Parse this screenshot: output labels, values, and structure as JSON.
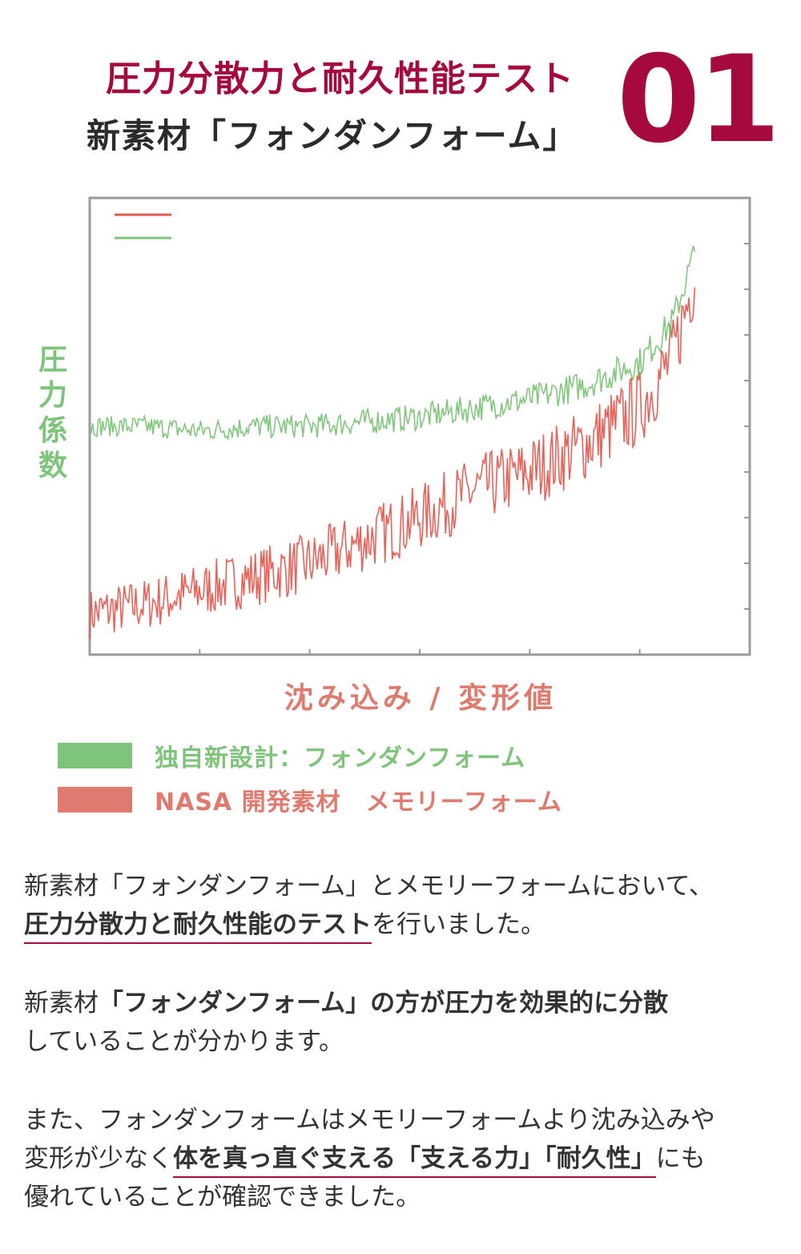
{
  "header": {
    "title_line1": "圧力分散力と耐久性能テスト",
    "title_line2": "新素材「フォンダンフォーム」",
    "number": "01"
  },
  "colors": {
    "accent": "#a6093d",
    "green": "#7ec47a",
    "red": "#e07a6e"
  },
  "chart_data": {
    "type": "line",
    "title": "",
    "xlabel": "沈み込み / 変形値",
    "ylabel": "圧力係数",
    "ylabel_chars": [
      "圧",
      "力",
      "係",
      "数"
    ],
    "xlim": [
      0,
      6
    ],
    "ylim": [
      0,
      10
    ],
    "x_ticks": [
      1,
      2,
      3,
      4,
      5
    ],
    "y_ticks": [
      1,
      2,
      3,
      4,
      5,
      6,
      7,
      8,
      9
    ],
    "grid": false,
    "series": [
      {
        "name": "独自新設計：フォンダンフォーム",
        "color": "#7ec47a",
        "x": [
          0,
          0.5,
          1,
          1.5,
          2,
          2.5,
          3,
          3.5,
          4,
          4.5,
          5,
          5.3,
          5.5
        ],
        "y": [
          5.0,
          5.0,
          4.9,
          5.0,
          5.0,
          5.1,
          5.2,
          5.4,
          5.6,
          5.9,
          6.4,
          7.3,
          8.8
        ]
      },
      {
        "name": "NASA 開発素材 メモリーフォーム",
        "color": "#e07a6e",
        "x": [
          0,
          0.5,
          1,
          1.5,
          2,
          2.5,
          3,
          3.5,
          4,
          4.5,
          5,
          5.3,
          5.5
        ],
        "y": [
          0.9,
          1.1,
          1.4,
          1.7,
          2.0,
          2.5,
          3.0,
          3.6,
          4.0,
          4.6,
          5.4,
          6.5,
          8.3
        ]
      }
    ]
  },
  "legend": [
    {
      "label": "独自新設計：フォンダンフォーム",
      "color": "#7ec47a"
    },
    {
      "label": "NASA 開発素材　メモリーフォーム",
      "color": "#e07a6e"
    }
  ],
  "paragraphs": {
    "p1_a": "新素材「フォンダンフォーム」とメモリーフォームにおいて、",
    "p1_b": "圧力分散力と耐久性能のテスト",
    "p1_c": "を行いました。",
    "p2_a": "新素材",
    "p2_b": "「フォンダンフォーム」の方が圧力を効果的に分散",
    "p2_c": "していることが分かります。",
    "p3_a": "また、フォンダンフォームはメモリーフォームより沈み込みや",
    "p3_b": "変形が少なく",
    "p3_c": "体を真っ直ぐ支える「支える力」「耐久性」",
    "p3_d": "にも",
    "p3_e": "優れていることが確認できました。"
  }
}
